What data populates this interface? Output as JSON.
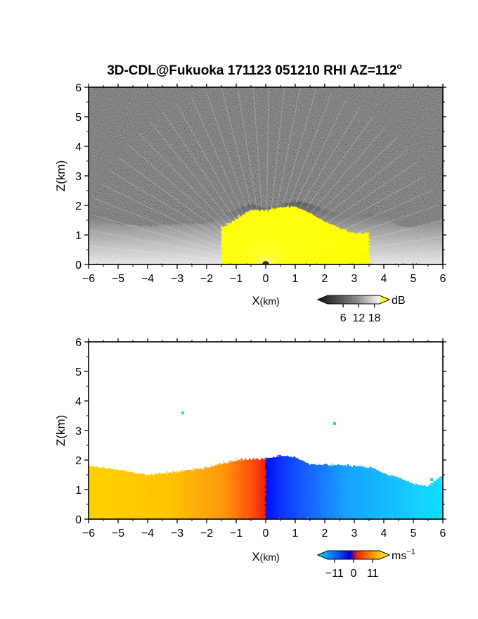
{
  "title": {
    "main": "3D-CDL@Fukuoka 171123 051210 RHI AZ=112",
    "degree_mark": "o"
  },
  "colors": {
    "background": "#ffffff",
    "reflectivity_bg": "#1e1e1e",
    "reflectivity_saturated": "#ffff00",
    "velocity_bg": "#ffffff"
  },
  "chart_data": [
    {
      "type": "heatmap",
      "panel": "reflectivity",
      "xlabel_main": "X",
      "xlabel_unit": "(km)",
      "ylabel": "Z(km)",
      "xlim": [
        -6,
        6
      ],
      "ylim": [
        0,
        6
      ],
      "x_ticks": [
        "−6",
        "−5",
        "−4",
        "−3",
        "−2",
        "−1",
        "0",
        "1",
        "2",
        "3",
        "4",
        "5",
        "6"
      ],
      "y_ticks": [
        "0",
        "1",
        "2",
        "3",
        "4",
        "5",
        "6"
      ],
      "x_tick_values": [
        -6,
        -5,
        -4,
        -3,
        -2,
        -1,
        0,
        1,
        2,
        3,
        4,
        5,
        6
      ],
      "y_tick_values": [
        0,
        1,
        2,
        3,
        4,
        5,
        6
      ],
      "echo_top_km": [
        [
          -6,
          1.8
        ],
        [
          -5.6,
          1.7
        ],
        [
          -5,
          1.35
        ],
        [
          -4,
          1.3
        ],
        [
          -3,
          1.35
        ],
        [
          -2,
          1.4
        ],
        [
          -1.5,
          1.6
        ],
        [
          -1,
          1.85
        ],
        [
          -0.5,
          2.05
        ],
        [
          0,
          1.9
        ],
        [
          0.5,
          2.0
        ],
        [
          1,
          2.15
        ],
        [
          1.5,
          2.05
        ],
        [
          2,
          1.85
        ],
        [
          2.5,
          1.7
        ],
        [
          3,
          1.6
        ],
        [
          3.5,
          1.75
        ],
        [
          4,
          1.6
        ],
        [
          4.5,
          1.3
        ],
        [
          5,
          1.25
        ],
        [
          5.5,
          1.35
        ],
        [
          6,
          1.6
        ]
      ],
      "colorbar": {
        "unit": "dB",
        "ticks": [
          "6",
          "12",
          "18"
        ],
        "tick_values": [
          6,
          12,
          18
        ],
        "range": [
          0,
          20
        ]
      }
    },
    {
      "type": "heatmap",
      "panel": "doppler_velocity",
      "xlabel_main": "X",
      "xlabel_unit": "(km)",
      "ylabel": "Z(km)",
      "xlim": [
        -6,
        6
      ],
      "ylim": [
        0,
        6
      ],
      "x_ticks": [
        "−6",
        "−5",
        "−4",
        "−3",
        "−2",
        "−1",
        "0",
        "1",
        "2",
        "3",
        "4",
        "5",
        "6"
      ],
      "y_ticks": [
        "0",
        "1",
        "2",
        "3",
        "4",
        "5",
        "6"
      ],
      "x_tick_values": [
        -6,
        -5,
        -4,
        -3,
        -2,
        -1,
        0,
        1,
        2,
        3,
        4,
        5,
        6
      ],
      "y_tick_values": [
        0,
        1,
        2,
        3,
        4,
        5,
        6
      ],
      "echo_top_km": [
        [
          -6,
          1.8
        ],
        [
          -5.2,
          1.7
        ],
        [
          -4,
          1.5
        ],
        [
          -3,
          1.6
        ],
        [
          -2,
          1.75
        ],
        [
          -1,
          2.0
        ],
        [
          0,
          2.05
        ],
        [
          0.5,
          2.15
        ],
        [
          1,
          2.1
        ],
        [
          1.5,
          1.85
        ],
        [
          2,
          1.85
        ],
        [
          3,
          1.8
        ],
        [
          3.6,
          1.75
        ],
        [
          4,
          1.55
        ],
        [
          4.5,
          1.4
        ],
        [
          5,
          1.2
        ],
        [
          5.5,
          1.1
        ],
        [
          6,
          1.5
        ]
      ],
      "colorbar": {
        "unit": "ms",
        "unit_exp": "−1",
        "ticks": [
          "−11",
          "0",
          "11"
        ],
        "tick_values": [
          -11,
          0,
          11
        ],
        "range": [
          -15,
          15
        ]
      }
    }
  ]
}
